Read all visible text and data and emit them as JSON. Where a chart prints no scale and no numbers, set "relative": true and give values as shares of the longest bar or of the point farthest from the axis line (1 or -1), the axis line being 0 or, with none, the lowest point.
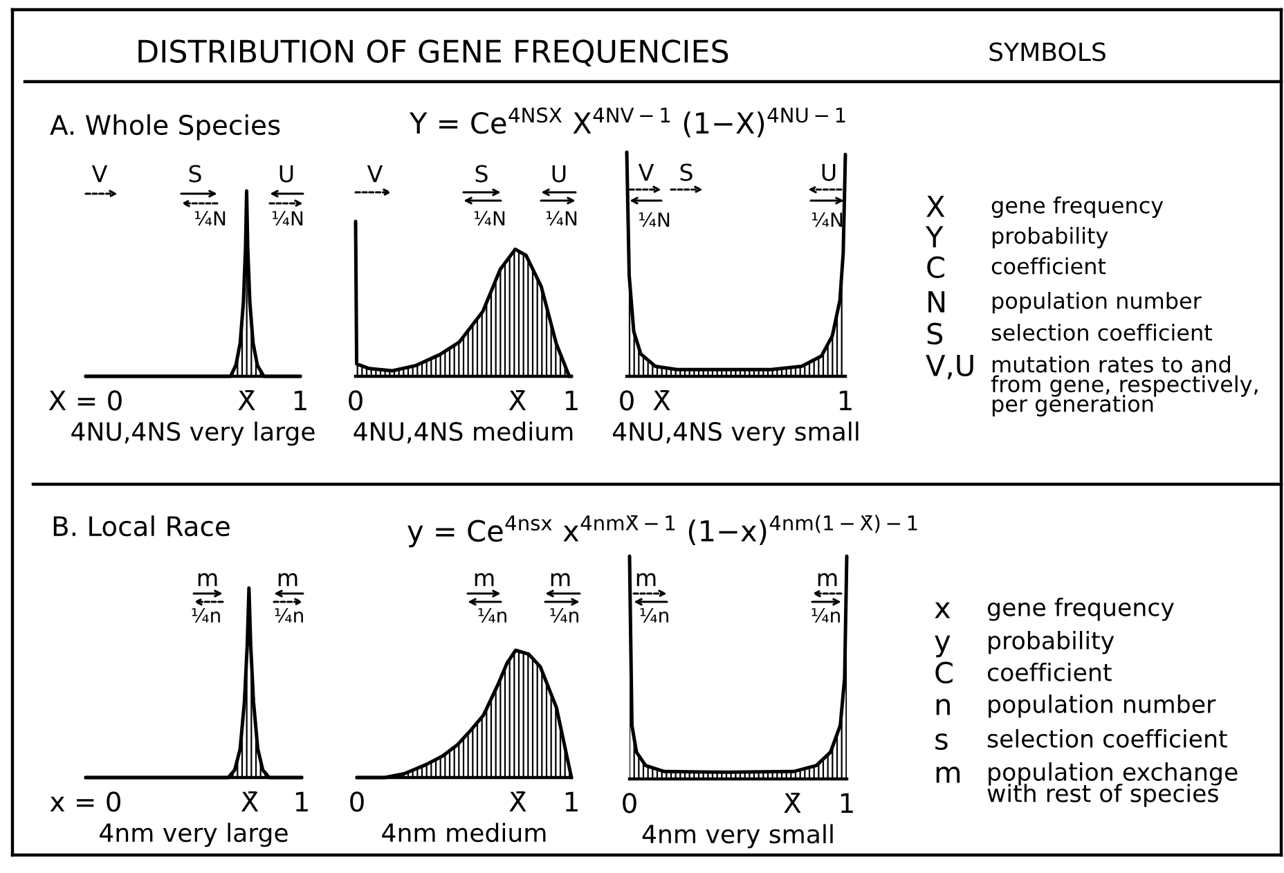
{
  "chart_data": [
    {
      "type": "other",
      "title": "DISTRIBUTION OF GENE FREQUENCIES"
    },
    {
      "type": "other",
      "title": "SYMBOLS"
    },
    {
      "type": "other",
      "title": "A. Whole Species",
      "subtitle": "Y = Ce$^{4NSX}$ X$^{4NV−1}$ (1−X)$^{4NU−1}$"
    },
    {
      "type": "area",
      "relative": true,
      "color": "#000000",
      "x": [
        0,
        0.64,
        0.675,
        0.7,
        0.72,
        0.735,
        0.745,
        0.75,
        0.755,
        0.765,
        0.78,
        0.8,
        0.83,
        1
      ],
      "values": [
        0,
        0,
        0,
        0.06,
        0.18,
        0.4,
        0.7,
        1,
        0.7,
        0.4,
        0.18,
        0.06,
        0,
        0
      ],
      "xlim": [
        0,
        1
      ],
      "xticks": [
        {
          "value": 0,
          "label": "X = 0"
        },
        {
          "value": 0.75,
          "label": "X̄"
        },
        1
      ],
      "xlabel": "4NU,4NS very large",
      "annotations": [
        "V",
        "S",
        "¼N",
        "U",
        "¼N"
      ]
    },
    {
      "type": "area",
      "relative": true,
      "color": "#000000",
      "x": [
        0,
        0.005,
        0.064,
        0.17,
        0.28,
        0.39,
        0.48,
        0.59,
        0.67,
        0.74,
        0.79,
        0.86,
        0.93,
        0.99,
        1
      ],
      "values": [
        1,
        0.08,
        0.05,
        0.036,
        0.07,
        0.14,
        0.22,
        0.42,
        0.69,
        0.82,
        0.78,
        0.58,
        0.21,
        0,
        0
      ],
      "xlim": [
        0,
        1
      ],
      "xticks": [
        0,
        {
          "value": 0.75,
          "label": "X̄"
        },
        1
      ],
      "xlabel": "4NU,4NS medium",
      "annotations": [
        "V",
        "S",
        "¼N",
        "U",
        "¼N"
      ]
    },
    {
      "type": "area",
      "relative": true,
      "color": "#000000",
      "x": [
        0,
        0.011,
        0.032,
        0.064,
        0.13,
        0.23,
        0.45,
        0.66,
        0.8,
        0.89,
        0.94,
        0.975,
        0.99,
        1
      ],
      "values": [
        1,
        0.45,
        0.2,
        0.1,
        0.045,
        0.03,
        0.03,
        0.03,
        0.045,
        0.09,
        0.18,
        0.34,
        0.55,
        0.99
      ],
      "xlim": [
        0,
        1
      ],
      "xticks": [
        0,
        {
          "value": 0.16,
          "label": "X̄"
        },
        1
      ],
      "xlabel": "4NU,4NS very small",
      "annotations": [
        "V",
        "S",
        "¼N",
        "U",
        "¼N"
      ]
    },
    {
      "type": "other",
      "annotations": [
        "X",
        "gene frequency",
        "Y",
        "probability",
        "C",
        "coefficient",
        "N",
        "population number",
        "S",
        "selection coefficient",
        "V,U",
        "mutation rates to and\nfrom gene, respectively,\nper generation"
      ]
    },
    {
      "type": "other",
      "title": "B. Local Race",
      "subtitle": "y = Ce$^{4nsx}$ x$^{4nmX̄−1}$ (1−x)$^{4nm(1−X̄)−1}$"
    },
    {
      "type": "area",
      "relative": true,
      "color": "#000000",
      "x": [
        0,
        0.66,
        0.69,
        0.715,
        0.735,
        0.748,
        0.756,
        0.764,
        0.777,
        0.797,
        0.82,
        0.85,
        1
      ],
      "values": [
        0,
        0,
        0.04,
        0.15,
        0.4,
        0.7,
        1,
        0.7,
        0.4,
        0.15,
        0.04,
        0,
        0
      ],
      "xlim": [
        0,
        1
      ],
      "xticks": [
        {
          "value": 0,
          "label": "x = 0"
        },
        {
          "value": 0.76,
          "label": "X̄"
        },
        1
      ],
      "xlabel": "4nm very large",
      "annotations": [
        "m",
        "¼n",
        "m",
        "¼n"
      ]
    },
    {
      "type": "area",
      "relative": true,
      "color": "#000000",
      "x": [
        0,
        0.13,
        0.22,
        0.32,
        0.4,
        0.47,
        0.53,
        0.59,
        0.66,
        0.7,
        0.74,
        0.8,
        0.855,
        0.93,
        1
      ],
      "values": [
        0,
        0,
        0.03,
        0.1,
        0.17,
        0.26,
        0.37,
        0.49,
        0.74,
        0.9,
        1,
        0.97,
        0.87,
        0.55,
        0
      ],
      "xlim": [
        0,
        1
      ],
      "xticks": [
        0,
        {
          "value": 0.75,
          "label": "X̄"
        },
        1
      ],
      "xlabel": "4nm medium",
      "annotations": [
        "m",
        "¼n",
        "m",
        "¼n"
      ]
    },
    {
      "type": "area",
      "relative": true,
      "color": "#000000",
      "x": [
        0,
        0.011,
        0.032,
        0.074,
        0.16,
        0.45,
        0.755,
        0.86,
        0.925,
        0.97,
        0.99,
        1
      ],
      "values": [
        1,
        0.24,
        0.12,
        0.06,
        0.033,
        0.03,
        0.033,
        0.06,
        0.12,
        0.24,
        0.45,
        1
      ],
      "xlim": [
        0,
        1
      ],
      "xticks": [
        0,
        {
          "value": 0.75,
          "label": "X̄"
        },
        1
      ],
      "xlabel": "4nm very small",
      "annotations": [
        "m",
        "¼n",
        "m",
        "¼n"
      ]
    },
    {
      "type": "other",
      "annotations": [
        "x",
        "gene frequency",
        "y",
        "probability",
        "C",
        "coefficient",
        "n",
        "population number",
        "s",
        "selection coefficient",
        "m",
        "population exchange\nwith rest of species"
      ]
    }
  ]
}
